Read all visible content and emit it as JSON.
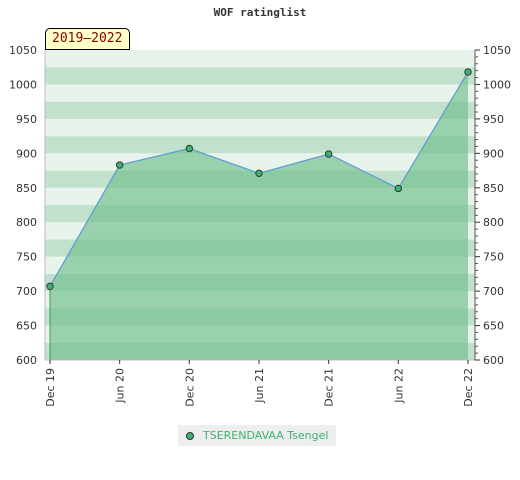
{
  "chart_data": {
    "type": "area",
    "title": "WOF ratinglist",
    "period": "2019–2022",
    "x": [
      "Dec 19",
      "Jun 20",
      "Dec 20",
      "Jun 21",
      "Dec 21",
      "Jun 22",
      "Dec 22"
    ],
    "series": [
      {
        "name": "TSERENDAVAA Tsengel",
        "values": [
          707,
          883,
          907,
          871,
          899,
          849,
          1018
        ]
      }
    ],
    "ylim": [
      600,
      1050
    ],
    "yticks": [
      600,
      650,
      700,
      750,
      800,
      850,
      900,
      950,
      1000,
      1050
    ],
    "grid": true,
    "legend": "bottom-center",
    "colors": {
      "line": "#5b9bd5",
      "marker": "#3cb371",
      "legend_text": "#3cb371",
      "area": "#6fbf8b",
      "band_light": "#e8f3ec",
      "band_dark": "#c2e1cc"
    }
  }
}
